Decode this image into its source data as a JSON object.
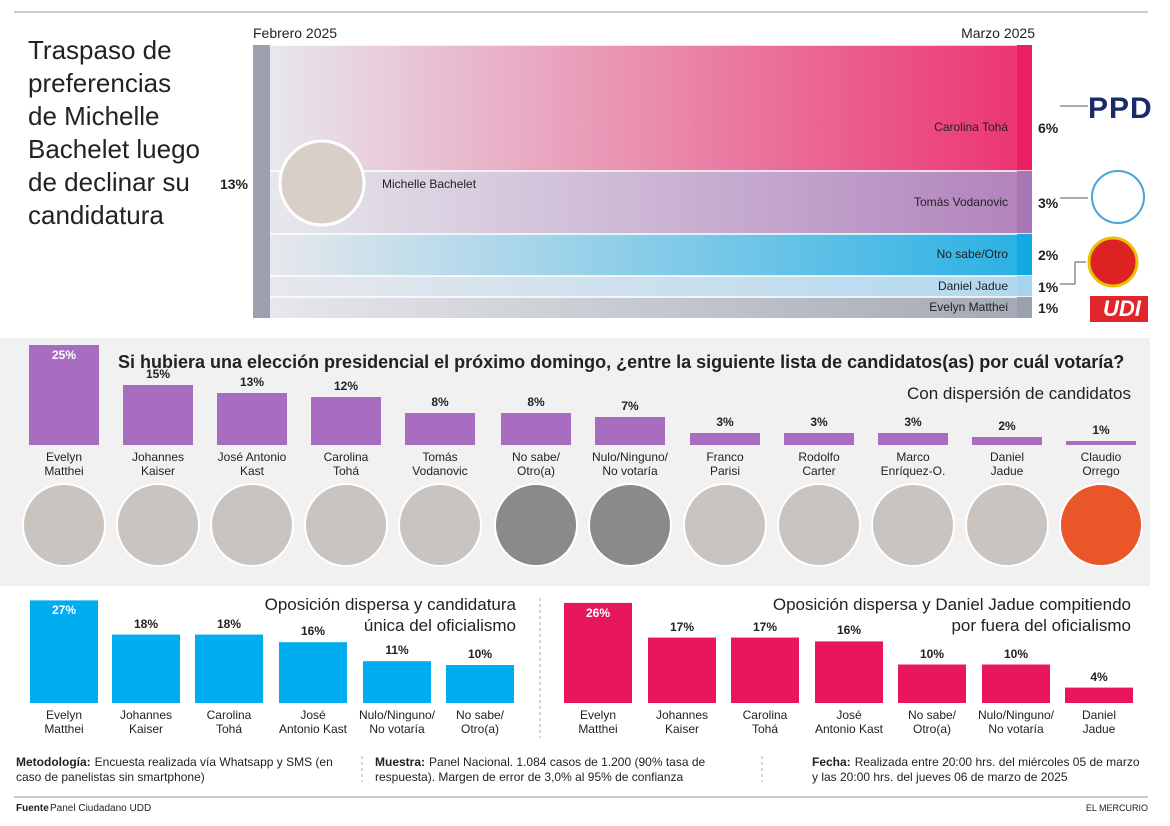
{
  "title": "Traspaso de\npreferencias\nde Michelle\nBachelet luego\nde declinar su\ncandidatura",
  "chart_data": [
    {
      "type": "flow",
      "left_label": "Febrero 2025",
      "right_label": "Marzo 2025",
      "source": {
        "name": "Michelle Bachelet",
        "value": 13,
        "value_label": "13%",
        "color": "#9aa0ae"
      },
      "categories": [
        "Carolina Tohá",
        "Tomás Vodanovic",
        "No sabe/Otro",
        "Daniel Jadue",
        "Evelyn Matthei"
      ],
      "values": [
        6,
        3,
        2,
        1,
        1
      ],
      "value_labels": [
        "6%",
        "3%",
        "2%",
        "1%",
        "1%"
      ],
      "colors": [
        "#ea1f63",
        "#a977b5",
        "#14a9e1",
        "#a9d4ee",
        "#9aa0ae"
      ],
      "logos": [
        "PPD",
        "UDI"
      ]
    },
    {
      "type": "bar",
      "title": "Si hubiera una elección presidencial el próximo domingo, ¿entre la siguiente lista de candidatos(as) por cuál votaría?",
      "subtitle": "Con dispersión de candidatos",
      "color": "#a86cc1",
      "categories": [
        "Evelyn\nMatthei",
        "Johannes\nKaiser",
        "José Antonio\nKast",
        "Carolina\nTohá",
        "Tomás\nVodanovic",
        "No sabe/\nOtro(a)",
        "Nulo/Ninguno/\nNo votaría",
        "Franco\nParisi",
        "Rodolfo\nCarter",
        "Marco\nEnríquez-O.",
        "Daniel\nJadue",
        "Claudio\nOrrego"
      ],
      "values": [
        25,
        15,
        13,
        12,
        8,
        8,
        7,
        3,
        3,
        3,
        2,
        1
      ],
      "value_labels": [
        "25%",
        "15%",
        "13%",
        "12%",
        "8%",
        "8%",
        "7%",
        "3%",
        "3%",
        "3%",
        "2%",
        "1%"
      ]
    },
    {
      "type": "bar",
      "subtitle": "Oposición dispersa y candidatura\núnica del oficialismo",
      "color": "#00aeef",
      "categories": [
        "Evelyn\nMatthei",
        "Johannes\nKaiser",
        "Carolina\nTohá",
        "José\nAntonio Kast",
        "Nulo/Ninguno/\nNo votaría",
        "No sabe/\nOtro(a)"
      ],
      "values": [
        27,
        18,
        18,
        16,
        11,
        10
      ],
      "value_labels": [
        "27%",
        "18%",
        "18%",
        "16%",
        "11%",
        "10%"
      ]
    },
    {
      "type": "bar",
      "subtitle": "Oposición dispersa y Daniel Jadue compitiendo\npor fuera del oficialismo",
      "color": "#e8175d",
      "categories": [
        "Evelyn\nMatthei",
        "Johannes\nKaiser",
        "Carolina\nTohá",
        "José\nAntonio Kast",
        "No sabe/\nOtro(a)",
        "Nulo/Ninguno/\nNo votaría",
        "Daniel\nJadue"
      ],
      "values": [
        26,
        17,
        17,
        16,
        10,
        10,
        4
      ],
      "value_labels": [
        "26%",
        "17%",
        "17%",
        "16%",
        "10%",
        "10%",
        "4%"
      ]
    }
  ],
  "notes": [
    {
      "label": "Metodología:",
      "text": "Encuesta realizada vía Whatsapp y SMS (en caso de panelistas sin smartphone)"
    },
    {
      "label": "Muestra:",
      "text": "Panel Nacional. 1.084 casos de 1.200 (90% tasa de respuesta). Margen de error de 3,0% al 95% de confianza"
    },
    {
      "label": "Fecha:",
      "text": "Realizada entre 20:00 hrs. del miércoles 05 de marzo y las 20:00 hrs. del jueves 06 de marzo de 2025"
    }
  ],
  "source": {
    "label": "Fuente",
    "text": "Panel Ciudadano UDD"
  },
  "brand": "EL MERCURIO"
}
